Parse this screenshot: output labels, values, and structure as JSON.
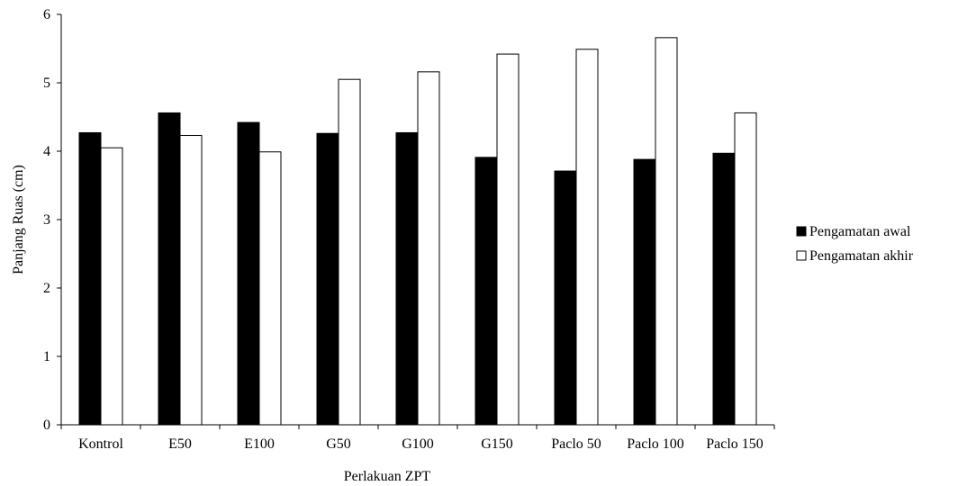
{
  "chart_data": {
    "type": "bar",
    "title": "",
    "xlabel": "Perlakuan ZPT",
    "ylabel": "Panjang Ruas (cm)",
    "ylim": [
      0,
      6
    ],
    "yticks": [
      "0",
      "1",
      "2",
      "3",
      "4",
      "5",
      "6"
    ],
    "grid": false,
    "legend_position": "right",
    "categories": [
      "Kontrol",
      "E50",
      "E100",
      "G50",
      "G100",
      "G150",
      "Paclo 50",
      "Paclo 100",
      "Paclo 150"
    ],
    "series": [
      {
        "name": "Pengamatan awal",
        "color": "#000000",
        "values": [
          4.27,
          4.56,
          4.42,
          4.26,
          4.27,
          3.91,
          3.71,
          3.88,
          3.97
        ]
      },
      {
        "name": "Pengamatan akhir",
        "color": "#ffffff",
        "values": [
          4.05,
          4.23,
          3.99,
          5.05,
          5.16,
          5.42,
          5.49,
          5.66,
          4.56
        ]
      }
    ]
  }
}
